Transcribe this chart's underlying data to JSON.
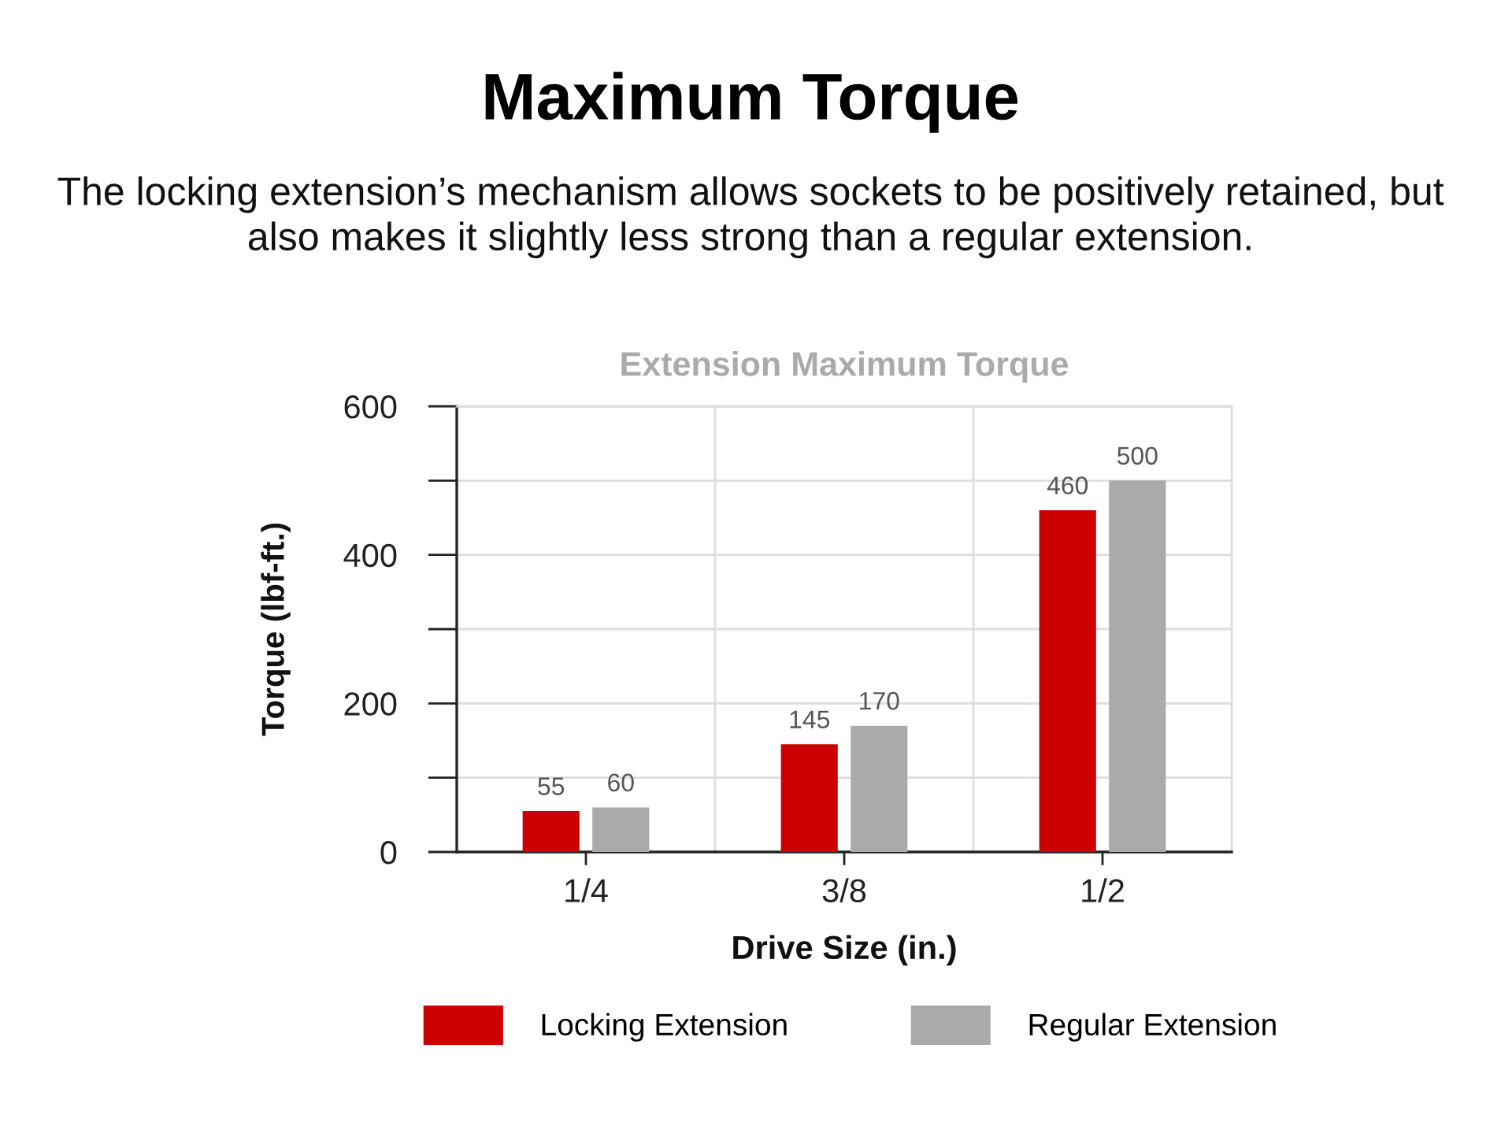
{
  "chart_data": {
    "type": "bar",
    "title": "Maximum Torque",
    "subtitle": "The locking extension’s mechanism allows sockets to be positively retained, but also makes it slightly less strong than a regular extension.",
    "annotations": [
      "Extension Maximum Torque"
    ],
    "xlabel": "Drive Size (in.)",
    "ylabel": "Torque (lbf-ft.)",
    "categories": [
      "1/4",
      "3/8",
      "1/2"
    ],
    "series": [
      {
        "name": "Locking Extension",
        "color": "#cc0000",
        "values": [
          55,
          145,
          460
        ]
      },
      {
        "name": "Regular Extension",
        "color": "#aaaaaa",
        "values": [
          60,
          170,
          500
        ]
      }
    ],
    "ylim": [
      0,
      600
    ],
    "yticks": [
      0,
      {
        "value": 100,
        "label": null
      },
      200,
      {
        "value": 300,
        "label": null
      },
      400,
      {
        "value": 500,
        "label": null
      },
      600
    ],
    "grid": true,
    "legend": "bottom",
    "data_labels": true
  }
}
